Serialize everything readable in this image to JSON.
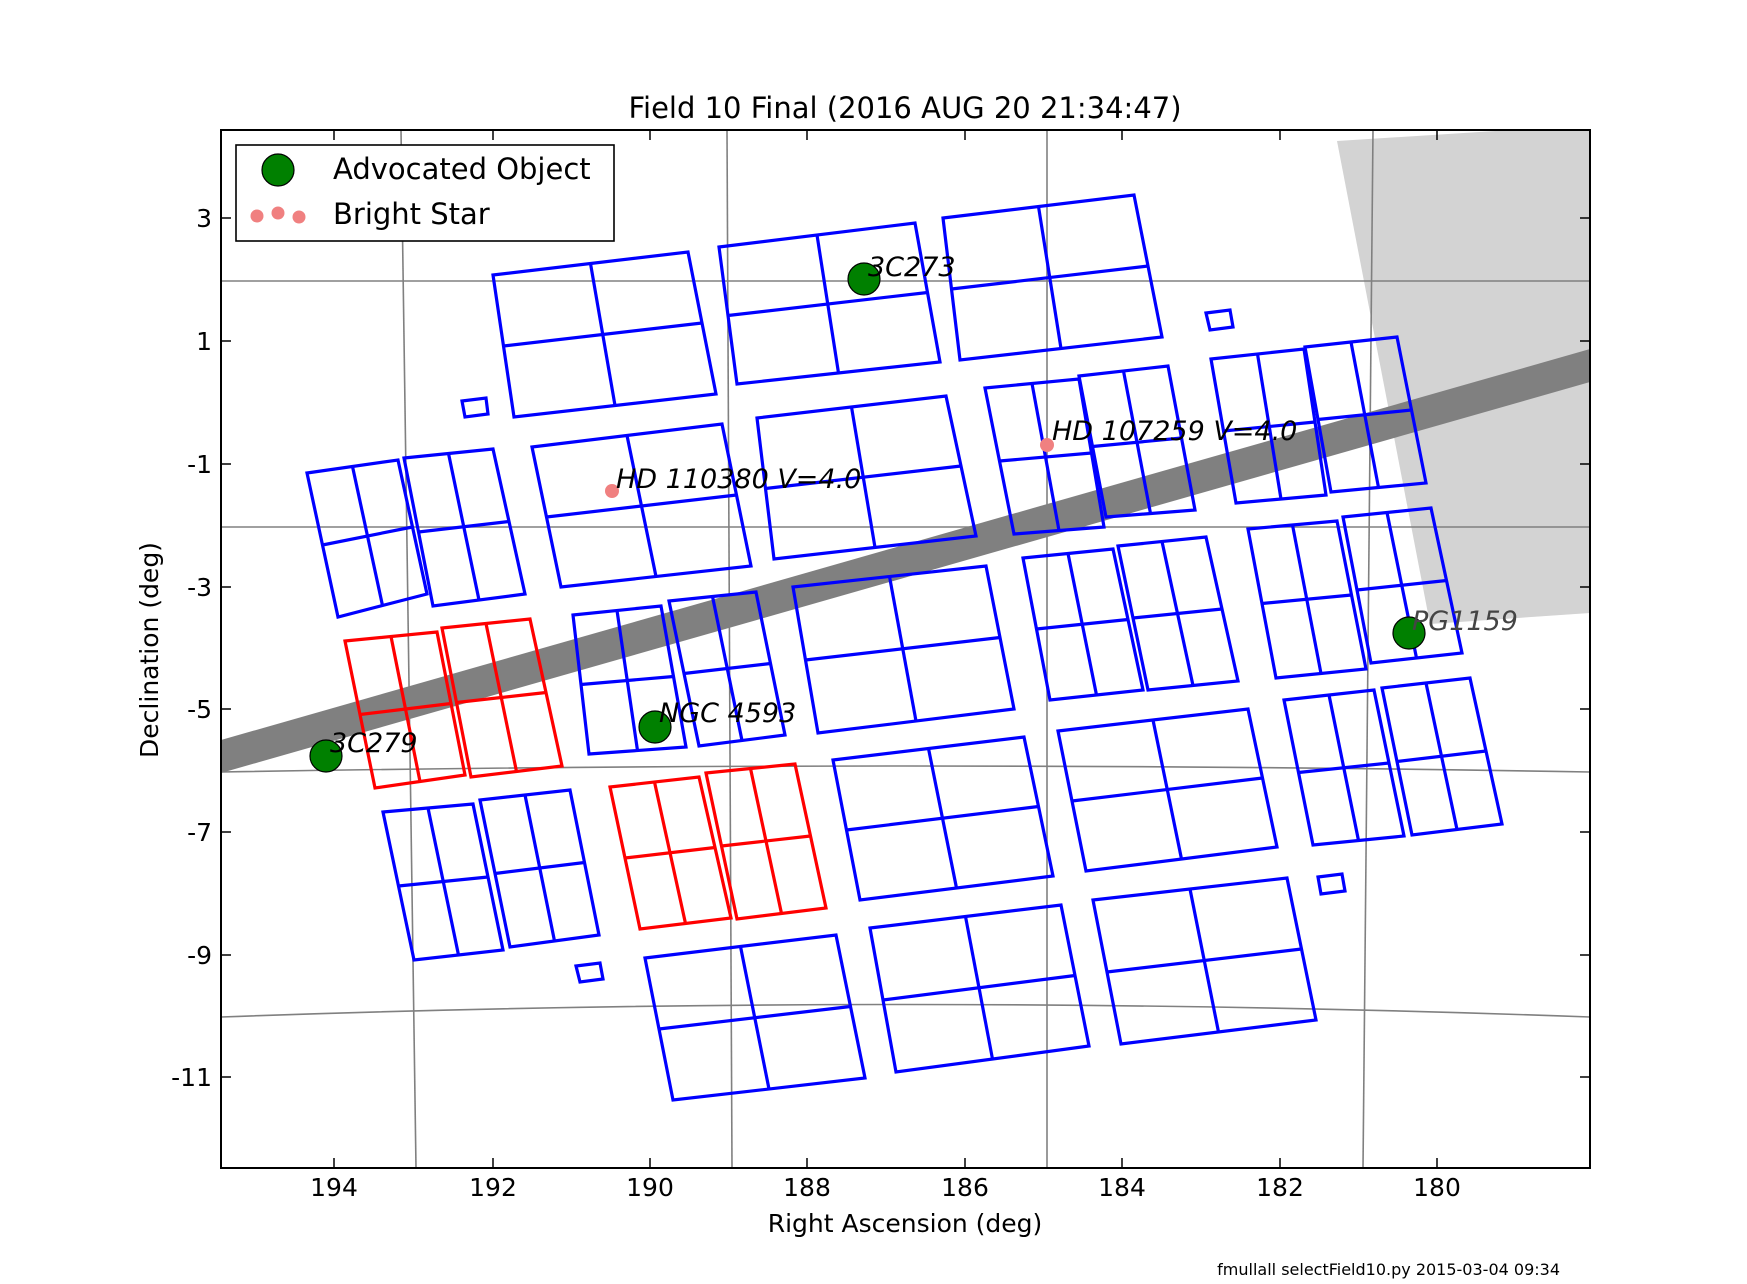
{
  "chart_data": {
    "type": "scatter",
    "title": "Field 10 Final (2016 AUG 20 21:34:47)",
    "xlabel": "Right Ascension (deg)",
    "ylabel": "Declination (deg)",
    "xlim": [
      195.4,
      178.0
    ],
    "ylim": [
      -12.45,
      4.45
    ],
    "x_ticks": [
      194,
      192,
      190,
      188,
      186,
      184,
      182,
      180
    ],
    "x_tick_labels": [
      "194",
      "192",
      "190",
      "188",
      "186",
      "184",
      "182",
      "180"
    ],
    "y_ticks": [
      3,
      1,
      -1,
      -3,
      -5,
      -7,
      -9,
      -11
    ],
    "y_tick_labels": [
      "3",
      "1",
      "-1",
      "-3",
      "-5",
      "-7",
      "-9",
      "-11"
    ],
    "grid": "curved RA/Dec grid lines",
    "legend": {
      "placement": "top-left",
      "entries": [
        {
          "label": "Advocated Object",
          "marker": "large-circle",
          "color": "#008000"
        },
        {
          "label": "Bright Star",
          "marker": "small-dots",
          "color": "#f08080"
        }
      ]
    },
    "advocated_objects": [
      {
        "name": "3C273",
        "ra": 187.28,
        "dec": 2.05
      },
      {
        "name": "PG1159",
        "ra": 180.37,
        "dec": -3.73
      },
      {
        "name": "NGC 4593",
        "ra": 189.92,
        "dec": -5.34
      },
      {
        "name": "3C279",
        "ra": 194.05,
        "dec": -5.79
      }
    ],
    "bright_stars": [
      {
        "name": "HD 110380 V=4.0",
        "ra": 190.42,
        "dec": -1.45
      },
      {
        "name": "HD 107259 V=4.0",
        "ra": 184.98,
        "dec": -0.67
      }
    ],
    "colors": {
      "campaign_fields": "#0000ff",
      "highlighted_fields": "#ff0000",
      "advocated_object": "#008000",
      "bright_star": "#f08080",
      "ecliptic_band": "#808080",
      "excluded_region": "#d3d3d3",
      "grid": "#808080"
    }
  },
  "footer": {
    "credit": "fmullall selectField10.py 2015-03-04 09:34"
  }
}
